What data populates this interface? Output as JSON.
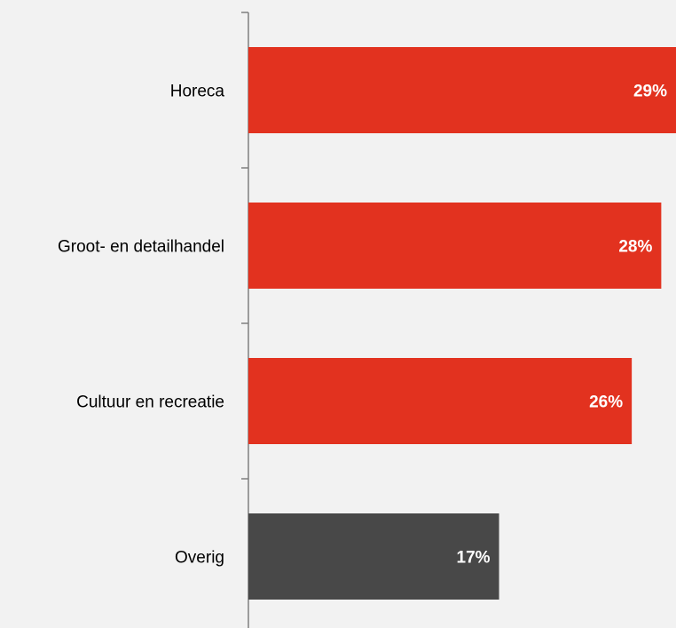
{
  "chart_data": {
    "type": "bar",
    "orientation": "horizontal",
    "categories": [
      "Horeca",
      "Groot- en detailhandel",
      "Cultuur en recreatie",
      "Overig"
    ],
    "values": [
      29,
      28,
      26,
      17
    ],
    "value_labels": [
      "29%",
      "28%",
      "26%",
      "17%"
    ],
    "unit": "%",
    "xlim": [
      0,
      29
    ],
    "grid": false,
    "legend": "none",
    "title": "",
    "xlabel": "",
    "ylabel": "",
    "colors": [
      "#e2321f",
      "#e2321f",
      "#e2321f",
      "#484848"
    ]
  }
}
